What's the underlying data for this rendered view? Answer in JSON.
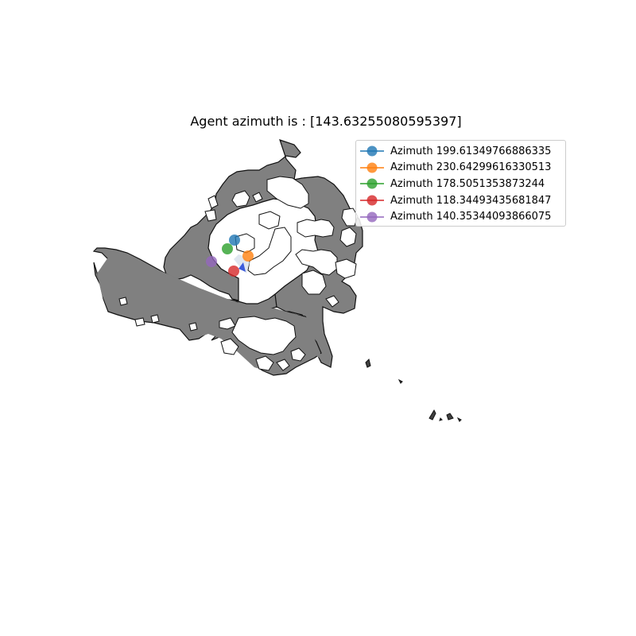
{
  "title": "Agent azimuth is : [143.63255080595397]",
  "agent_marker_color": "#3b5bdb",
  "map_fill_color": "#808080",
  "legend": {
    "placement": "top-right",
    "items": [
      {
        "label": "Azimuth 199.61349766886335",
        "color": "#1f77b4"
      },
      {
        "label": "Azimuth 230.64299616330513",
        "color": "#ff7f0e"
      },
      {
        "label": "Azimuth 178.5051353873244",
        "color": "#2ca02c"
      },
      {
        "label": "Azimuth 118.34493435681847",
        "color": "#d62728"
      },
      {
        "label": "Azimuth 140.35344093866075",
        "color": "#9467bd"
      }
    ]
  }
}
